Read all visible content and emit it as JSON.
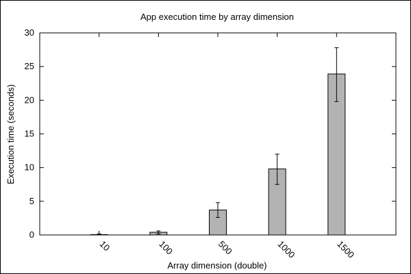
{
  "chart_data": {
    "type": "bar",
    "title": "App execution time by array dimension",
    "xlabel": "Array dimension (double)",
    "ylabel": "Execution time (seconds)",
    "categories": [
      "10",
      "100",
      "500",
      "1000",
      "1500"
    ],
    "values": [
      0.05,
      0.4,
      3.7,
      9.8,
      23.9
    ],
    "error_low": [
      0.0,
      0.15,
      2.6,
      7.5,
      19.8
    ],
    "error_high": [
      0.15,
      0.6,
      4.8,
      12.0,
      27.8
    ],
    "ylim": [
      0,
      30
    ],
    "yticks": [
      0,
      5,
      10,
      15,
      20,
      25,
      30
    ],
    "grid": false,
    "bar_color": "#b3b3b3"
  }
}
